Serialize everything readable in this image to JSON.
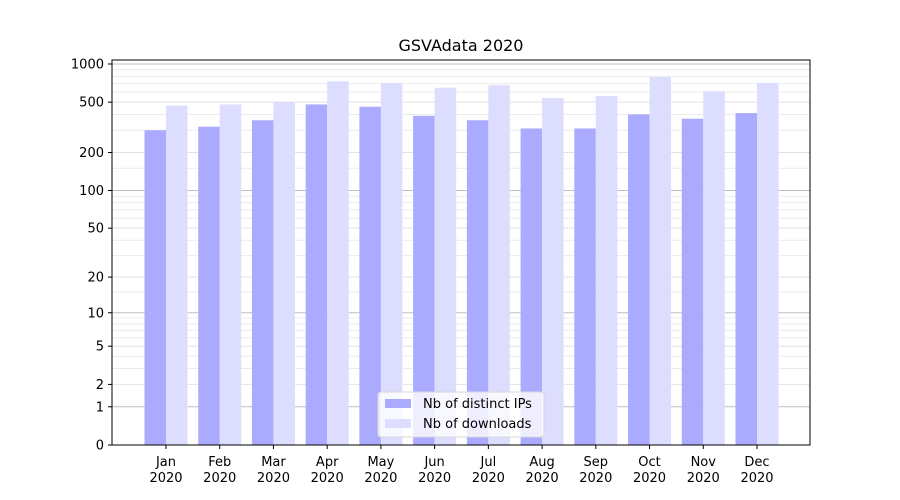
{
  "chart_data": {
    "type": "bar",
    "title": "GSVAdata 2020",
    "xlabel": "",
    "ylabel": "",
    "yscale": "log1p",
    "ylim": [
      0,
      1100
    ],
    "yticks": [
      0,
      1,
      2,
      5,
      10,
      20,
      50,
      100,
      200,
      500,
      1000
    ],
    "grid": true,
    "legend_position": "bottom-center",
    "categories": [
      "Jan\n2020",
      "Feb\n2020",
      "Mar\n2020",
      "Apr\n2020",
      "May\n2020",
      "Jun\n2020",
      "Jul\n2020",
      "Aug\n2020",
      "Sep\n2020",
      "Oct\n2020",
      "Nov\n2020",
      "Dec\n2020"
    ],
    "series": [
      {
        "name": "Nb of distinct IPs",
        "color": "#aaaaff",
        "values": [
          300,
          320,
          360,
          480,
          460,
          390,
          360,
          310,
          310,
          400,
          370,
          410
        ]
      },
      {
        "name": "Nb of downloads",
        "color": "#ddddff",
        "values": [
          470,
          480,
          500,
          730,
          710,
          650,
          680,
          540,
          560,
          790,
          610,
          710
        ]
      }
    ]
  }
}
